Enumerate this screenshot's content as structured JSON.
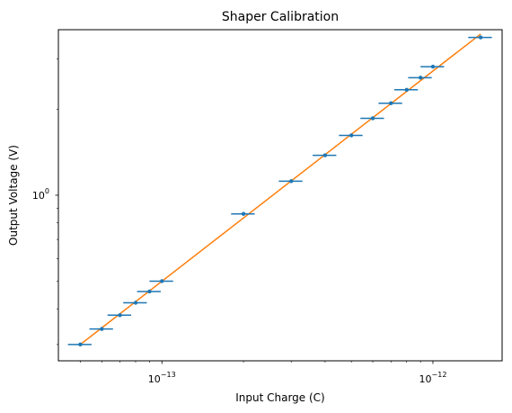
{
  "colors": {
    "data": "#1f77b4",
    "fit": "#ff7f0e",
    "axes": "#000000",
    "background": "#ffffff"
  },
  "chart_data": {
    "type": "scatter",
    "title": "Shaper Calibration",
    "xlabel": "Input Charge (C)",
    "ylabel": "Output Voltage (V)",
    "xscale": "log",
    "yscale": "log",
    "xlim": [
      4.15e-14,
      1.8e-12
    ],
    "ylim": [
      0.263,
      3.8
    ],
    "grid": false,
    "x_tick_labels": [
      {
        "value": 1e-13,
        "base": "10",
        "exp": "−13"
      },
      {
        "value": 1e-12,
        "base": "10",
        "exp": "−12"
      }
    ],
    "y_tick_labels": [
      {
        "value": 1.0,
        "base": "10",
        "exp": "0"
      }
    ],
    "series": [
      {
        "kind": "errorbar",
        "x": [
          5e-14,
          6e-14,
          7e-14,
          8e-14,
          9e-14,
          1e-13,
          2e-13,
          3e-13,
          4e-13,
          5e-13,
          6e-13,
          7e-13,
          8e-13,
          9e-13,
          1e-12,
          1.5e-12
        ],
        "y": [
          0.3,
          0.34,
          0.38,
          0.42,
          0.46,
          0.5,
          0.86,
          1.12,
          1.38,
          1.62,
          1.86,
          2.1,
          2.34,
          2.58,
          2.82,
          3.57
        ],
        "xerr_fraction": 0.1
      },
      {
        "kind": "line",
        "x": [
          5e-14,
          1.5e-12
        ],
        "y": [
          0.3,
          3.67
        ]
      }
    ]
  }
}
